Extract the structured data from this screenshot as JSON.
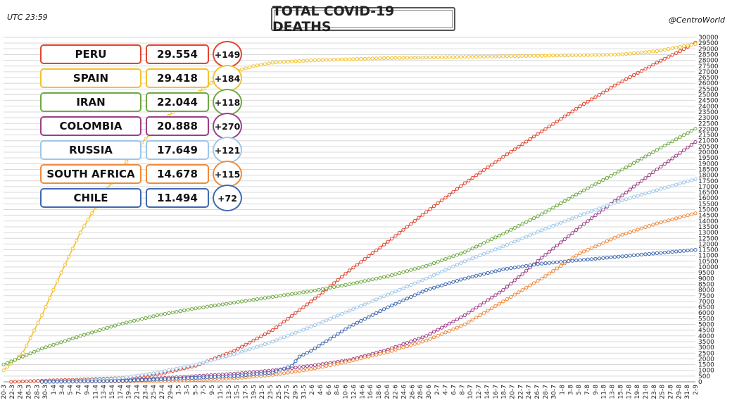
{
  "header": {
    "utc": "UTC 23:59",
    "title": "TOTAL COVID-19 DEATHS",
    "credit": "@CentroWorld"
  },
  "legend": [
    {
      "name": "PERU",
      "value": "29.554",
      "delta": "+149",
      "color": "#e0452f"
    },
    {
      "name": "SPAIN",
      "value": "29.418",
      "delta": "+184",
      "color": "#f2c12e"
    },
    {
      "name": "IRAN",
      "value": "22.044",
      "delta": "+118",
      "color": "#6ea843"
    },
    {
      "name": "COLOMBIA",
      "value": "20.888",
      "delta": "+270",
      "color": "#9b3f88"
    },
    {
      "name": "RUSSIA",
      "value": "17.649",
      "delta": "+121",
      "color": "#9fc6e8"
    },
    {
      "name": "SOUTH AFRICA",
      "value": "14.678",
      "delta": "+115",
      "color": "#ee8a3e"
    },
    {
      "name": "CHILE",
      "value": "11.494",
      "delta": "+72",
      "color": "#3f68b0"
    }
  ],
  "chart_data": {
    "type": "line",
    "title": "TOTAL COVID-19 DEATHS",
    "xlabel": "",
    "ylabel": "",
    "ylim": [
      0,
      30000
    ],
    "grid": true,
    "y_axis_side": "right",
    "y_ticks": [
      0,
      500,
      1000,
      1500,
      2000,
      2500,
      3000,
      3500,
      4000,
      4500,
      5000,
      5500,
      6000,
      6500,
      7000,
      7500,
      8000,
      8500,
      9000,
      9500,
      10000,
      10500,
      11000,
      11500,
      12000,
      12500,
      13000,
      13500,
      14000,
      14500,
      15000,
      15500,
      16000,
      16500,
      17000,
      17500,
      18000,
      18500,
      19000,
      19500,
      20000,
      20500,
      21000,
      21500,
      22000,
      22500,
      23000,
      23500,
      24000,
      24500,
      25000,
      25500,
      26000,
      26500,
      27000,
      27500,
      28000,
      28500,
      29000,
      29500,
      30000
    ],
    "x_ticks": [
      "20-3",
      "22-3",
      "24-3",
      "26-3",
      "28-3",
      "30-3",
      "1-4",
      "3-4",
      "5-4",
      "7-4",
      "9-4",
      "11-4",
      "13-4",
      "15-4",
      "17-4",
      "19-4",
      "21-4",
      "23-4",
      "25-4",
      "27-4",
      "29-4",
      "1-5",
      "3-5",
      "5-5",
      "7-5",
      "9-5",
      "11-5",
      "13-5",
      "15-5",
      "17-5",
      "19-5",
      "21-5",
      "23-5",
      "25-5",
      "27-5",
      "29-5",
      "31-5",
      "2-6",
      "4-6",
      "6-6",
      "8-6",
      "10-6",
      "12-6",
      "14-6",
      "16-6",
      "18-6",
      "20-6",
      "22-6",
      "24-6",
      "26-6",
      "28-6",
      "30-6",
      "2-7",
      "4-7",
      "6-7",
      "8-7",
      "10-7",
      "12-7",
      "14-7",
      "16-7",
      "18-7",
      "20-7",
      "22-7",
      "24-7",
      "26-7",
      "28-7",
      "30-7",
      "1-8",
      "3-8",
      "5-8",
      "7-8",
      "9-8",
      "11-8",
      "13-8",
      "15-8",
      "17-8",
      "19-8",
      "21-8",
      "23-8",
      "25-8",
      "27-8",
      "29-8",
      "31-8",
      "2-9"
    ],
    "series": [
      {
        "name": "PERU",
        "color": "#e0452f",
        "points": [
          [
            2,
            0
          ],
          [
            10,
            100
          ],
          [
            20,
            200
          ],
          [
            30,
            320
          ],
          [
            40,
            650
          ],
          [
            50,
            1400
          ],
          [
            60,
            2700
          ],
          [
            70,
            4500
          ],
          [
            76,
            6000
          ],
          [
            82,
            7500
          ],
          [
            90,
            9700
          ],
          [
            100,
            12200
          ],
          [
            110,
            14800
          ],
          [
            120,
            17300
          ],
          [
            130,
            19600
          ],
          [
            140,
            21800
          ],
          [
            150,
            24000
          ],
          [
            160,
            26000
          ],
          [
            170,
            27800
          ],
          [
            176,
            28800
          ],
          [
            180,
            29554
          ]
        ]
      },
      {
        "name": "SPAIN",
        "color": "#f2c12e",
        "points": [
          [
            0,
            1000
          ],
          [
            5,
            2500
          ],
          [
            10,
            5800
          ],
          [
            15,
            9500
          ],
          [
            20,
            13000
          ],
          [
            25,
            15800
          ],
          [
            30,
            18300
          ],
          [
            35,
            20500
          ],
          [
            40,
            22200
          ],
          [
            45,
            23800
          ],
          [
            50,
            25000
          ],
          [
            55,
            26300
          ],
          [
            60,
            27000
          ],
          [
            65,
            27500
          ],
          [
            70,
            27800
          ],
          [
            80,
            28000
          ],
          [
            100,
            28200
          ],
          [
            130,
            28350
          ],
          [
            160,
            28500
          ],
          [
            170,
            28800
          ],
          [
            180,
            29418
          ]
        ]
      },
      {
        "name": "IRAN",
        "color": "#6ea843",
        "points": [
          [
            0,
            1500
          ],
          [
            10,
            2900
          ],
          [
            20,
            4000
          ],
          [
            30,
            5000
          ],
          [
            40,
            5800
          ],
          [
            50,
            6400
          ],
          [
            60,
            6900
          ],
          [
            70,
            7400
          ],
          [
            80,
            7900
          ],
          [
            90,
            8500
          ],
          [
            100,
            9200
          ],
          [
            110,
            10100
          ],
          [
            120,
            11300
          ],
          [
            130,
            12900
          ],
          [
            140,
            14600
          ],
          [
            150,
            16500
          ],
          [
            160,
            18300
          ],
          [
            170,
            20200
          ],
          [
            180,
            22044
          ]
        ]
      },
      {
        "name": "COLOMBIA",
        "color": "#9b3f88",
        "points": [
          [
            10,
            0
          ],
          [
            20,
            50
          ],
          [
            30,
            150
          ],
          [
            40,
            300
          ],
          [
            50,
            500
          ],
          [
            60,
            700
          ],
          [
            70,
            1000
          ],
          [
            80,
            1400
          ],
          [
            90,
            1900
          ],
          [
            100,
            2800
          ],
          [
            110,
            4000
          ],
          [
            120,
            5800
          ],
          [
            130,
            8000
          ],
          [
            140,
            10800
          ],
          [
            150,
            13500
          ],
          [
            160,
            16000
          ],
          [
            170,
            18500
          ],
          [
            180,
            20888
          ]
        ]
      },
      {
        "name": "RUSSIA",
        "color": "#9fc6e8",
        "points": [
          [
            10,
            0
          ],
          [
            20,
            100
          ],
          [
            30,
            300
          ],
          [
            40,
            800
          ],
          [
            50,
            1500
          ],
          [
            60,
            2400
          ],
          [
            70,
            3500
          ],
          [
            80,
            4800
          ],
          [
            90,
            6200
          ],
          [
            100,
            7600
          ],
          [
            110,
            9000
          ],
          [
            120,
            10500
          ],
          [
            130,
            11800
          ],
          [
            140,
            13200
          ],
          [
            150,
            14500
          ],
          [
            160,
            15700
          ],
          [
            170,
            16700
          ],
          [
            180,
            17649
          ]
        ]
      },
      {
        "name": "SOUTH AFRICA",
        "color": "#ee8a3e",
        "points": [
          [
            10,
            0
          ],
          [
            20,
            20
          ],
          [
            40,
            60
          ],
          [
            50,
            150
          ],
          [
            60,
            300
          ],
          [
            70,
            600
          ],
          [
            80,
            1100
          ],
          [
            90,
            1800
          ],
          [
            100,
            2600
          ],
          [
            110,
            3600
          ],
          [
            120,
            5000
          ],
          [
            125,
            6000
          ],
          [
            130,
            7000
          ],
          [
            140,
            9000
          ],
          [
            150,
            11200
          ],
          [
            160,
            12700
          ],
          [
            170,
            13800
          ],
          [
            180,
            14678
          ]
        ]
      },
      {
        "name": "CHILE",
        "color": "#3f68b0",
        "points": [
          [
            10,
            0
          ],
          [
            20,
            30
          ],
          [
            30,
            80
          ],
          [
            40,
            200
          ],
          [
            50,
            350
          ],
          [
            60,
            500
          ],
          [
            70,
            800
          ],
          [
            75,
            1400
          ],
          [
            77,
            2200
          ],
          [
            80,
            2700
          ],
          [
            90,
            4800
          ],
          [
            100,
            6500
          ],
          [
            110,
            8000
          ],
          [
            120,
            9000
          ],
          [
            130,
            9800
          ],
          [
            140,
            10300
          ],
          [
            150,
            10600
          ],
          [
            160,
            10900
          ],
          [
            170,
            11200
          ],
          [
            180,
            11494
          ]
        ]
      }
    ]
  }
}
